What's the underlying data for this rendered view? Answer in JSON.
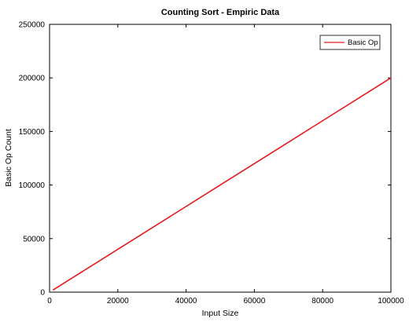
{
  "chart_data": {
    "type": "line",
    "title": "Counting Sort - Empiric Data",
    "xlabel": "Input Size",
    "ylabel": "Basic Op Count",
    "xlim": [
      0,
      100000
    ],
    "ylim": [
      0,
      250000
    ],
    "x_ticks": [
      0,
      20000,
      40000,
      60000,
      80000,
      100000
    ],
    "y_ticks": [
      0,
      50000,
      100000,
      150000,
      200000,
      250000
    ],
    "grid": false,
    "legend_position": "top-right",
    "series": [
      {
        "name": "Basic Op",
        "color": "#e41a1c",
        "x": [
          1000,
          10000,
          20000,
          30000,
          40000,
          50000,
          60000,
          70000,
          80000,
          90000,
          100000
        ],
        "y": [
          2000,
          20000,
          40000,
          60000,
          80000,
          100000,
          120000,
          140000,
          160000,
          180000,
          200000
        ]
      }
    ]
  }
}
